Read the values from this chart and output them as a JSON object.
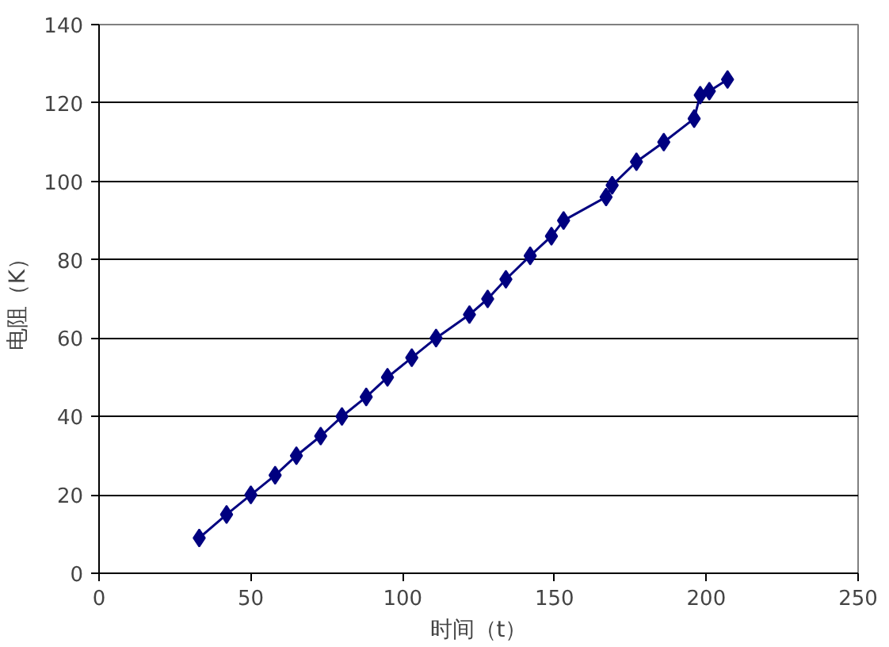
{
  "chart_data": {
    "type": "line",
    "xlabel": "时间（t）",
    "ylabel": "电阻（K）",
    "x": [
      33,
      42,
      50,
      58,
      65,
      73,
      80,
      88,
      95,
      103,
      111,
      122,
      128,
      134,
      142,
      149,
      153,
      167,
      169,
      177,
      186,
      196,
      198,
      201,
      207
    ],
    "series": [
      {
        "color": "#000080",
        "values": [
          9,
          15,
          20,
          25,
          30,
          35,
          40,
          45,
          50,
          55,
          60,
          66,
          70,
          75,
          81,
          86,
          90,
          96,
          99,
          105,
          110,
          116,
          122,
          123,
          126
        ]
      }
    ],
    "xlim": [
      0,
      250
    ],
    "xticks": [
      0,
      50,
      100,
      150,
      200,
      250
    ],
    "ylim": [
      0,
      140
    ],
    "yticks": [
      0,
      20,
      40,
      60,
      80,
      100,
      120,
      140
    ],
    "grid": "y",
    "marker": "diamond",
    "line_style": "solid"
  }
}
